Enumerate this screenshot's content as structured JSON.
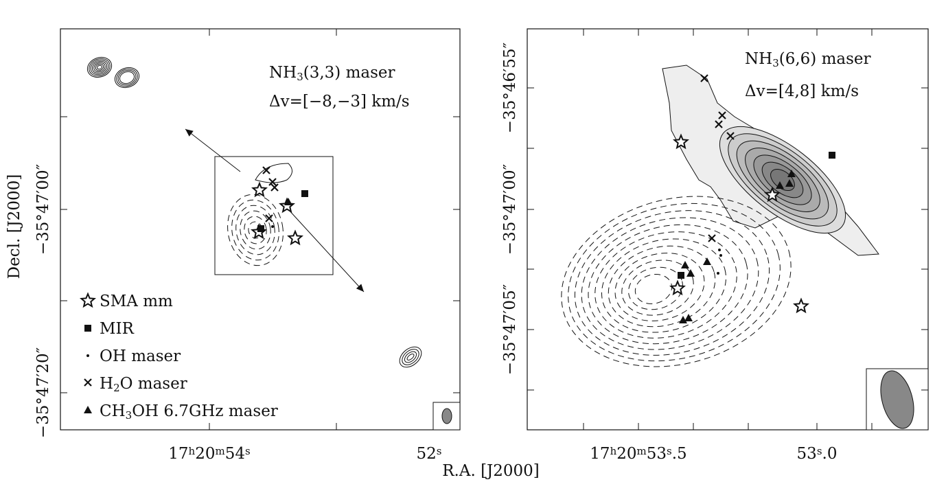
{
  "axis_labels": {
    "y": "Decl. [J2000]",
    "x": "R.A. [J2000]"
  },
  "left_panel": {
    "title_parts": [
      "NH",
      "3",
      "(3,3) maser"
    ],
    "velocity": "Δv=[−8,−3] km/s",
    "x_tick_labels": [
      [
        "17",
        "h",
        "20",
        "m",
        "54",
        "s"
      ],
      [
        "52",
        "s"
      ]
    ],
    "y_tick_labels": [
      "−35°47′00″",
      "−35°47′20″"
    ],
    "legend": [
      [
        "SMA mm"
      ],
      [
        "MIR"
      ],
      [
        "OH maser"
      ],
      [
        "H",
        "2",
        "O maser"
      ],
      [
        "CH",
        "3",
        "OH 6.7GHz maser"
      ]
    ]
  },
  "right_panel": {
    "title_parts": [
      "NH",
      "3",
      "(6,6) maser"
    ],
    "velocity": "Δv=[4,8] km/s",
    "x_tick_labels": [
      [
        "17",
        "h",
        "20",
        "m",
        "53",
        "s",
        ".5"
      ],
      [
        "53",
        "s",
        ".0"
      ]
    ],
    "y_tick_labels": [
      "−35°46′55″",
      "−35°47′00″",
      "−35°47′05″"
    ]
  }
}
